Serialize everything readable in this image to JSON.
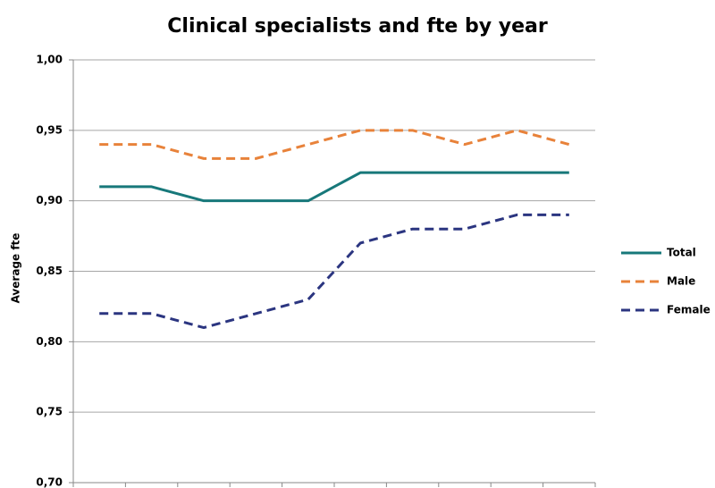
{
  "chart_data": {
    "type": "line",
    "title": "Clinical specialists and fte by year",
    "ylabel": "Average fte",
    "categories": [
      null,
      null,
      null,
      null,
      null,
      null,
      null,
      null,
      null,
      null
    ],
    "series": [
      {
        "name": "Total",
        "color": "#17787a",
        "dashed": false,
        "values": [
          0.91,
          0.91,
          0.9,
          0.9,
          0.9,
          0.92,
          0.92,
          0.92,
          0.92,
          0.92
        ]
      },
      {
        "name": "Male",
        "color": "#e8823a",
        "dashed": true,
        "values": [
          0.94,
          0.94,
          0.93,
          0.93,
          0.94,
          0.95,
          0.95,
          0.94,
          0.95,
          0.94
        ]
      },
      {
        "name": "Female",
        "color": "#2b3580",
        "dashed": true,
        "values": [
          0.82,
          0.82,
          0.81,
          0.82,
          0.83,
          0.87,
          0.88,
          0.88,
          0.89,
          0.89
        ]
      }
    ],
    "ylim": [
      0.7,
      1.0
    ],
    "yticks": [
      {
        "value": 0.7,
        "label": "0,70"
      },
      {
        "value": 0.75,
        "label": "0,75"
      },
      {
        "value": 0.8,
        "label": "0,80"
      },
      {
        "value": 0.85,
        "label": "0,85"
      },
      {
        "value": 0.9,
        "label": "0,90"
      },
      {
        "value": 0.95,
        "label": "0,95"
      },
      {
        "value": 1.0,
        "label": "1,00"
      }
    ],
    "grid": true,
    "legend": "right"
  }
}
